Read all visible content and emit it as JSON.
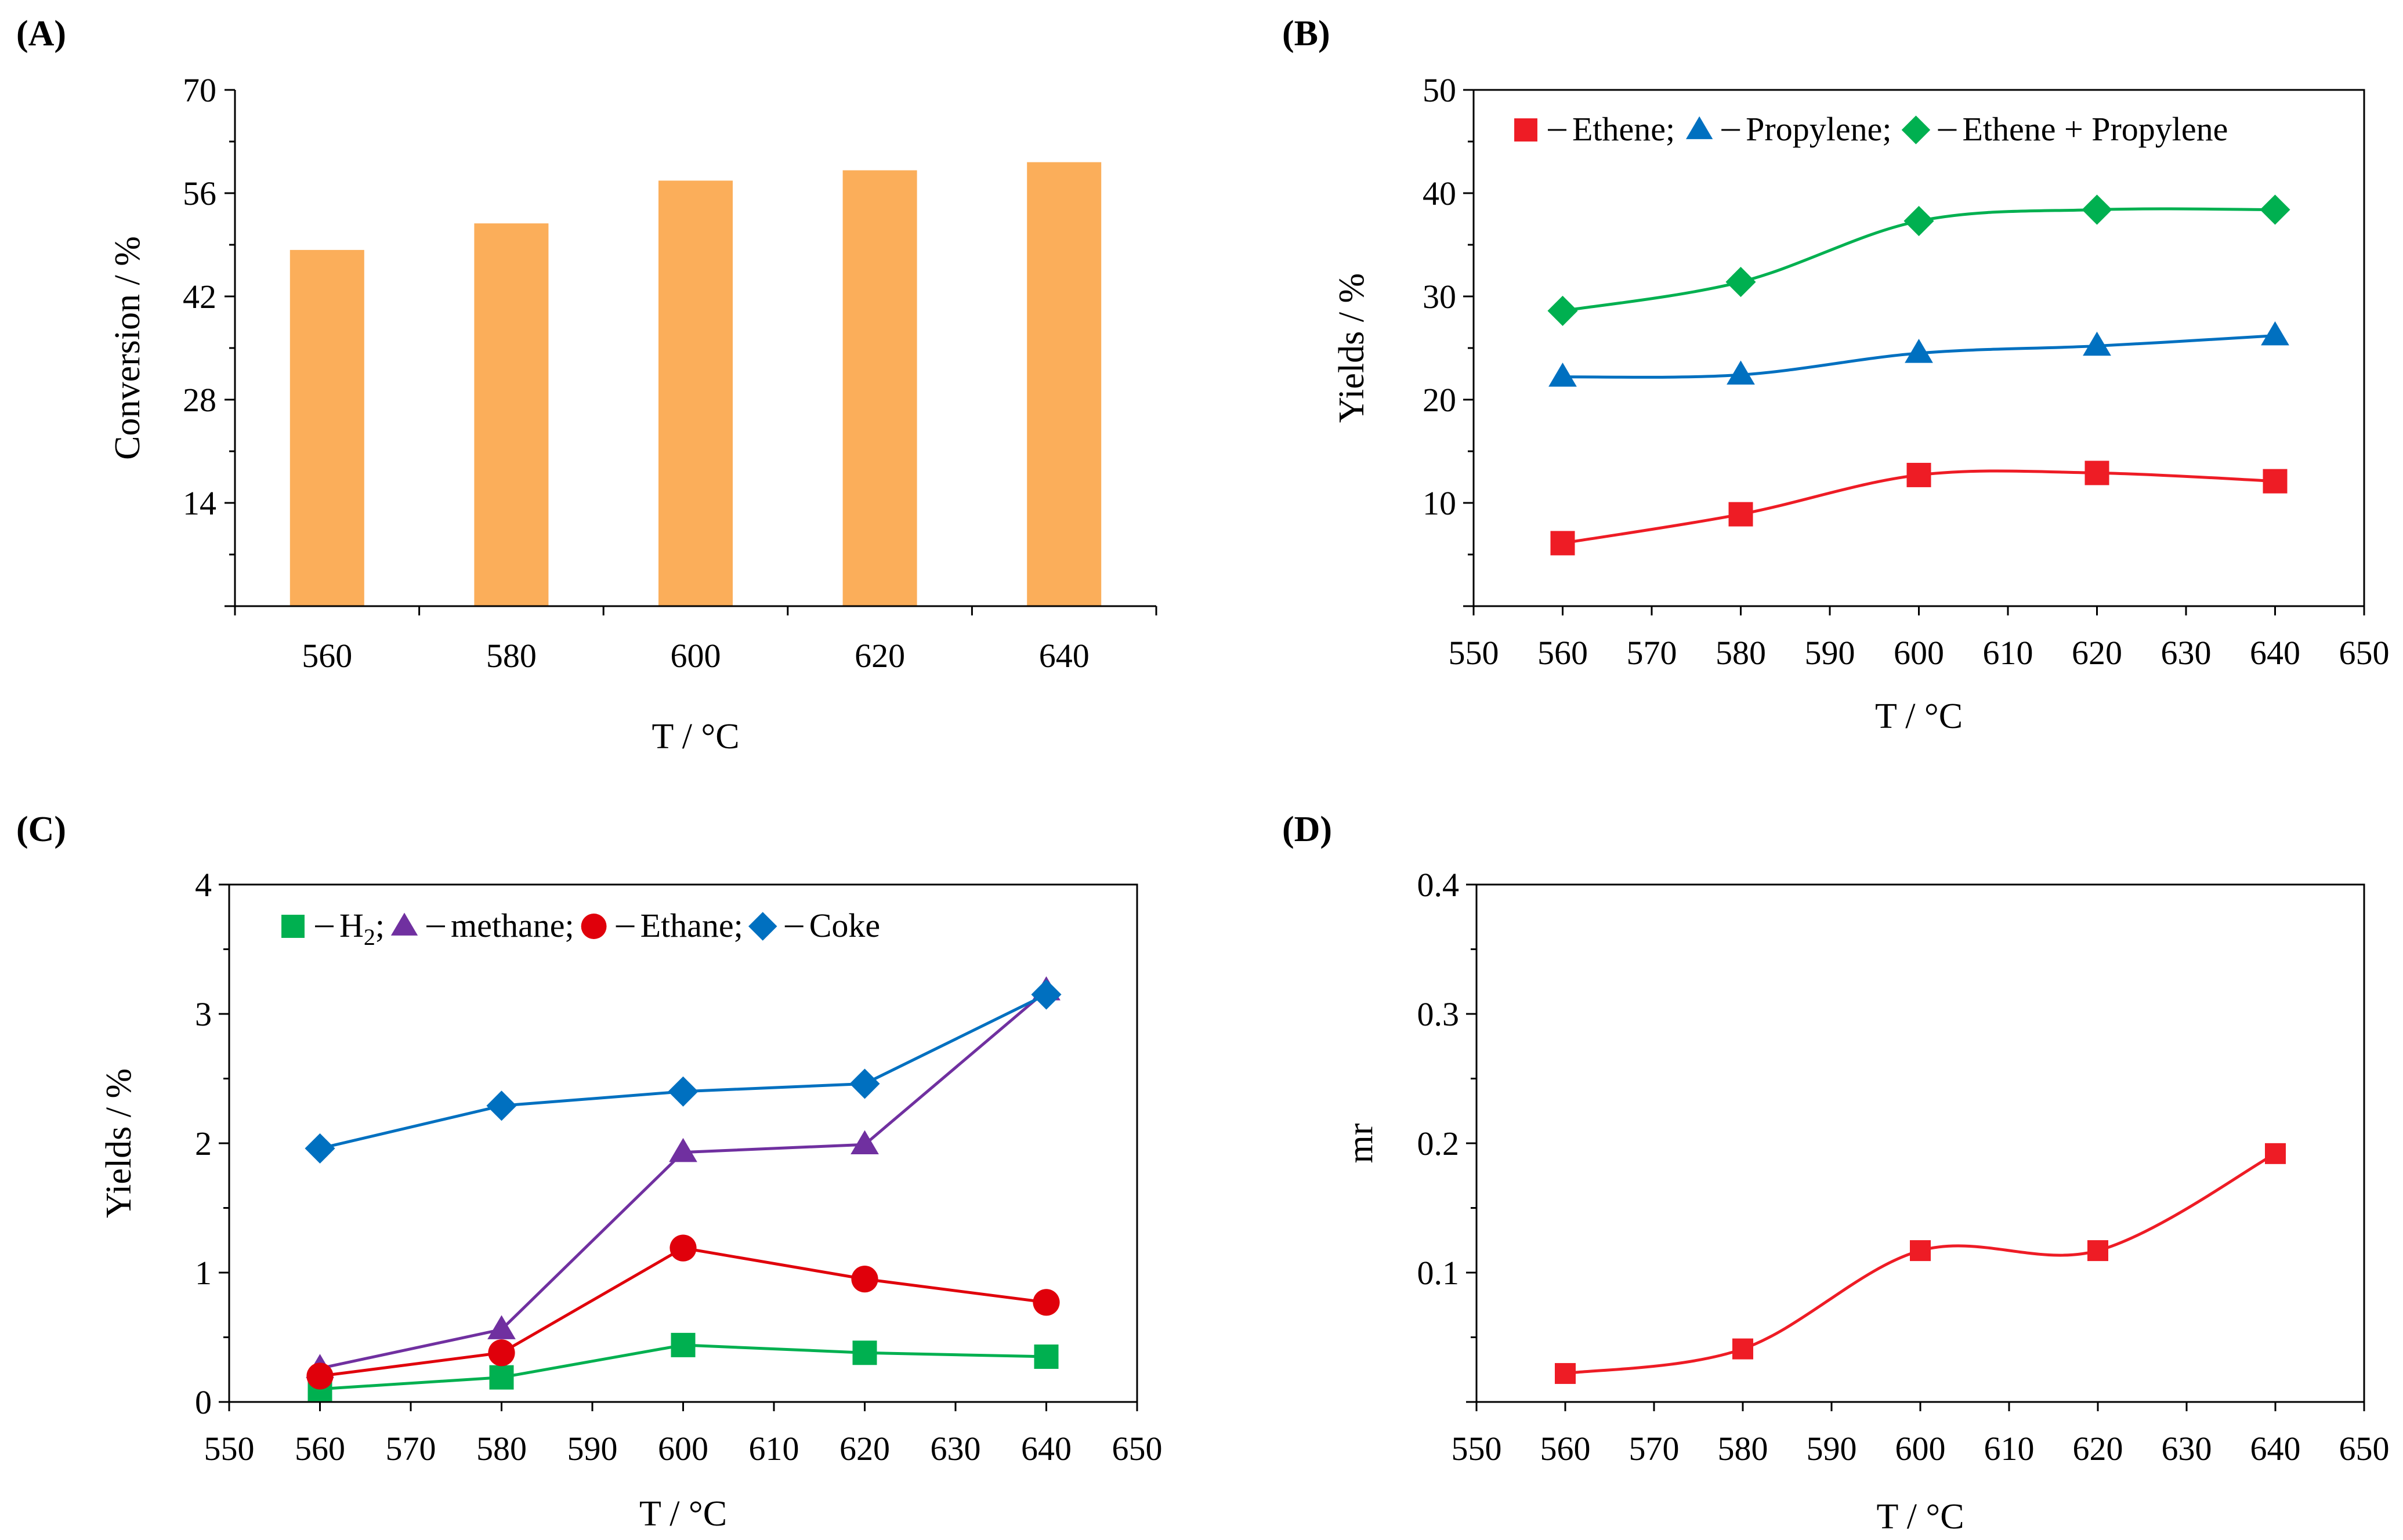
{
  "chart_data": [
    {
      "panel": "(A)",
      "type": "bar",
      "categories": [
        "560",
        "580",
        "600",
        "620",
        "640"
      ],
      "values": [
        48.3,
        51.9,
        57.7,
        59.1,
        60.2
      ],
      "yticks": [
        "14",
        "28",
        "42",
        "56",
        "70"
      ],
      "ylim": [
        0,
        70
      ],
      "xlabel": "T / °C",
      "ylabel": "Conversion / %",
      "bar_color": "#FBAE5A"
    },
    {
      "panel": "(B)",
      "type": "line",
      "x": [
        560,
        580,
        600,
        620,
        640
      ],
      "xlim": [
        550,
        650
      ],
      "xticks": [
        "550",
        "560",
        "570",
        "580",
        "590",
        "600",
        "610",
        "620",
        "630",
        "640",
        "650"
      ],
      "ylim": [
        0,
        50
      ],
      "yticks": [
        "10",
        "20",
        "30",
        "40",
        "50"
      ],
      "xlabel": "T / °C",
      "ylabel": "Yields / %",
      "legend_position": "top",
      "series": [
        {
          "name": "Ethene;",
          "marker": "square",
          "color": "#EE1C25",
          "values": [
            6.1,
            8.9,
            12.7,
            12.9,
            12.1
          ]
        },
        {
          "name": "Propylene;",
          "marker": "triangle",
          "color": "#0070C0",
          "values": [
            22.2,
            22.4,
            24.5,
            25.2,
            26.2
          ]
        },
        {
          "name": "Ethene + Propylene",
          "marker": "diamond",
          "color": "#00B050",
          "values": [
            28.6,
            31.4,
            37.3,
            38.4,
            38.4
          ]
        }
      ]
    },
    {
      "panel": "(C)",
      "type": "line",
      "x": [
        560,
        580,
        600,
        620,
        640
      ],
      "xlim": [
        550,
        650
      ],
      "xticks": [
        "550",
        "560",
        "570",
        "580",
        "590",
        "600",
        "610",
        "620",
        "630",
        "640",
        "650"
      ],
      "ylim": [
        0,
        4
      ],
      "yticks": [
        "0",
        "1",
        "2",
        "3",
        "4"
      ],
      "xlabel": "T / °C",
      "ylabel": "Yields / %",
      "legend_position": "top",
      "series": [
        {
          "name": "H",
          "sub": "2",
          "suffix": ";",
          "marker": "square",
          "color": "#00B050",
          "values": [
            0.1,
            0.19,
            0.44,
            0.38,
            0.35
          ]
        },
        {
          "name": "methane;",
          "marker": "triangle",
          "color": "#7030A0",
          "values": [
            0.26,
            0.56,
            1.93,
            1.99,
            3.18
          ]
        },
        {
          "name": "Ethane;",
          "marker": "circle",
          "color": "#E0000B",
          "values": [
            0.2,
            0.38,
            1.19,
            0.95,
            0.77
          ]
        },
        {
          "name": "Coke",
          "marker": "diamond",
          "color": "#0070C0",
          "values": [
            1.96,
            2.29,
            2.4,
            2.46,
            3.15
          ]
        }
      ]
    },
    {
      "panel": "(D)",
      "type": "line",
      "x": [
        560,
        580,
        600,
        620,
        640
      ],
      "xlim": [
        550,
        650
      ],
      "xticks": [
        "550",
        "560",
        "570",
        "580",
        "590",
        "600",
        "610",
        "620",
        "630",
        "640",
        "650"
      ],
      "ylim": [
        0,
        0.4
      ],
      "yticks": [
        "0.1",
        "0.2",
        "0.3",
        "0.4"
      ],
      "xlabel": "T / °C",
      "ylabel": "mr",
      "series": [
        {
          "name": "mr",
          "marker": "square",
          "color": "#EE1C25",
          "values": [
            0.022,
            0.041,
            0.117,
            0.117,
            0.192
          ]
        }
      ]
    }
  ]
}
